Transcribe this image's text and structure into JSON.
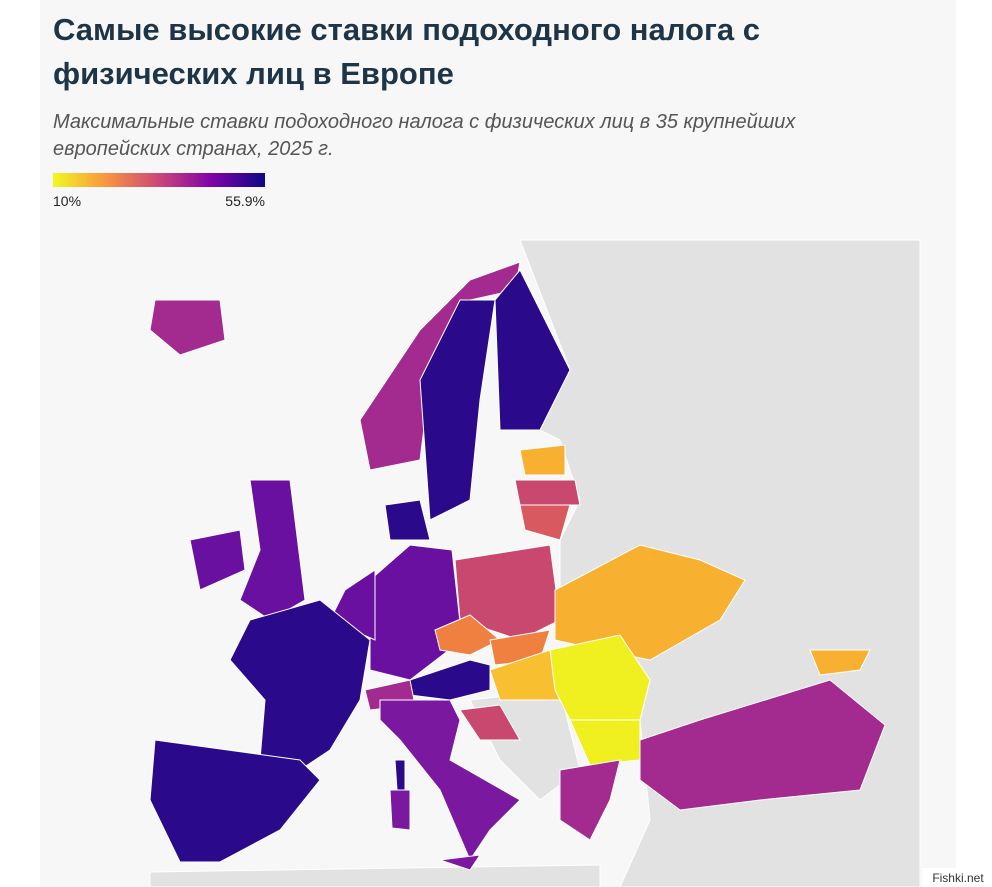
{
  "header": {
    "title_lines": [
      "Самые высокие ставки подоходного налога с",
      "физических лиц в Европе"
    ],
    "subtitle_lines": [
      "Максимальные ставки подоходного налога с физических лиц в 35 крупнейших",
      "европейских странах, 2025 г."
    ]
  },
  "legend": {
    "colors": [
      "#f0f921",
      "#f89540",
      "#cc4778",
      "#7e03a8",
      "#0d0887"
    ],
    "min": {
      "value": 10,
      "label": "10%"
    },
    "max": {
      "value": 55.9,
      "label": "55.9%"
    }
  },
  "watermark": "Fishki.net"
}
